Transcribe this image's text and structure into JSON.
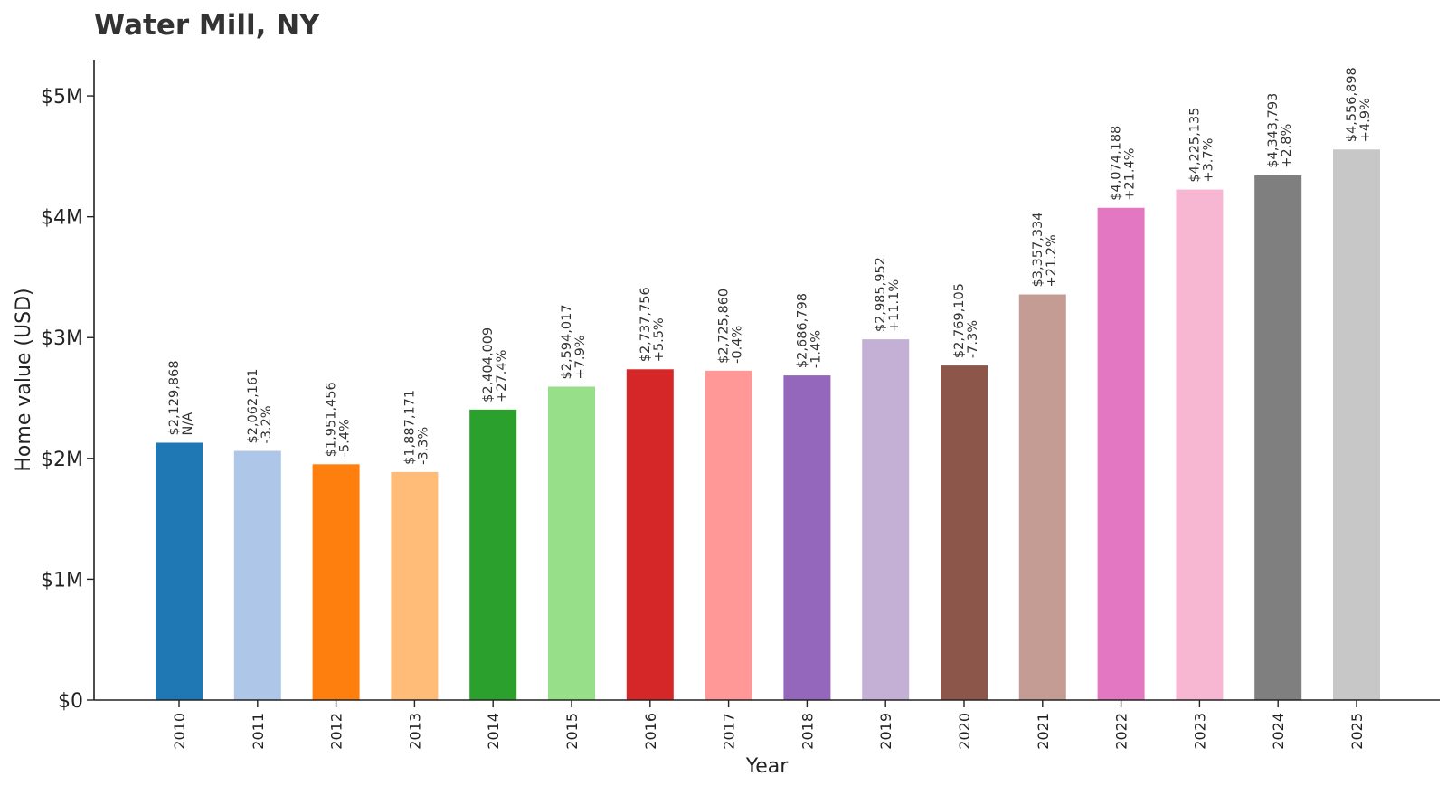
{
  "chart_data": {
    "type": "bar",
    "title": "Water Mill, NY",
    "xlabel": "Year",
    "ylabel": "Home value (USD)",
    "ylim": [
      0,
      5300000
    ],
    "yticks": [
      {
        "value": 0,
        "label": "$0"
      },
      {
        "value": 1000000,
        "label": "$1M"
      },
      {
        "value": 2000000,
        "label": "$2M"
      },
      {
        "value": 3000000,
        "label": "$3M"
      },
      {
        "value": 4000000,
        "label": "$4M"
      },
      {
        "value": 5000000,
        "label": "$5M"
      }
    ],
    "grid": false,
    "legend": "none",
    "categories": [
      "2010",
      "2011",
      "2012",
      "2013",
      "2014",
      "2015",
      "2016",
      "2017",
      "2018",
      "2019",
      "2020",
      "2021",
      "2022",
      "2023",
      "2024",
      "2025"
    ],
    "values": [
      2129868,
      2062161,
      1951456,
      1887171,
      2404009,
      2594017,
      2737756,
      2725860,
      2686798,
      2985952,
      2769105,
      3357334,
      4074188,
      4225135,
      4343793,
      4556898
    ],
    "value_labels": [
      "$2,129,868",
      "$2,062,161",
      "$1,951,456",
      "$1,887,171",
      "$2,404,009",
      "$2,594,017",
      "$2,737,756",
      "$2,725,860",
      "$2,686,798",
      "$2,985,952",
      "$2,769,105",
      "$3,357,334",
      "$4,074,188",
      "$4,225,135",
      "$4,343,793",
      "$4,556,898"
    ],
    "change_labels": [
      "N/A",
      "-3.2%",
      "-5.4%",
      "-3.3%",
      "+27.4%",
      "+7.9%",
      "+5.5%",
      "-0.4%",
      "-1.4%",
      "+11.1%",
      "-7.3%",
      "+21.2%",
      "+21.4%",
      "+3.7%",
      "+2.8%",
      "+4.9%"
    ],
    "colors": [
      "#1f77b4",
      "#aec7e8",
      "#ff7f0e",
      "#ffbb78",
      "#2ca02c",
      "#98df8a",
      "#d62728",
      "#ff9896",
      "#9467bd",
      "#c5b0d5",
      "#8c564b",
      "#c49c94",
      "#e377c2",
      "#f7b6d2",
      "#7f7f7f",
      "#c7c7c7"
    ]
  }
}
